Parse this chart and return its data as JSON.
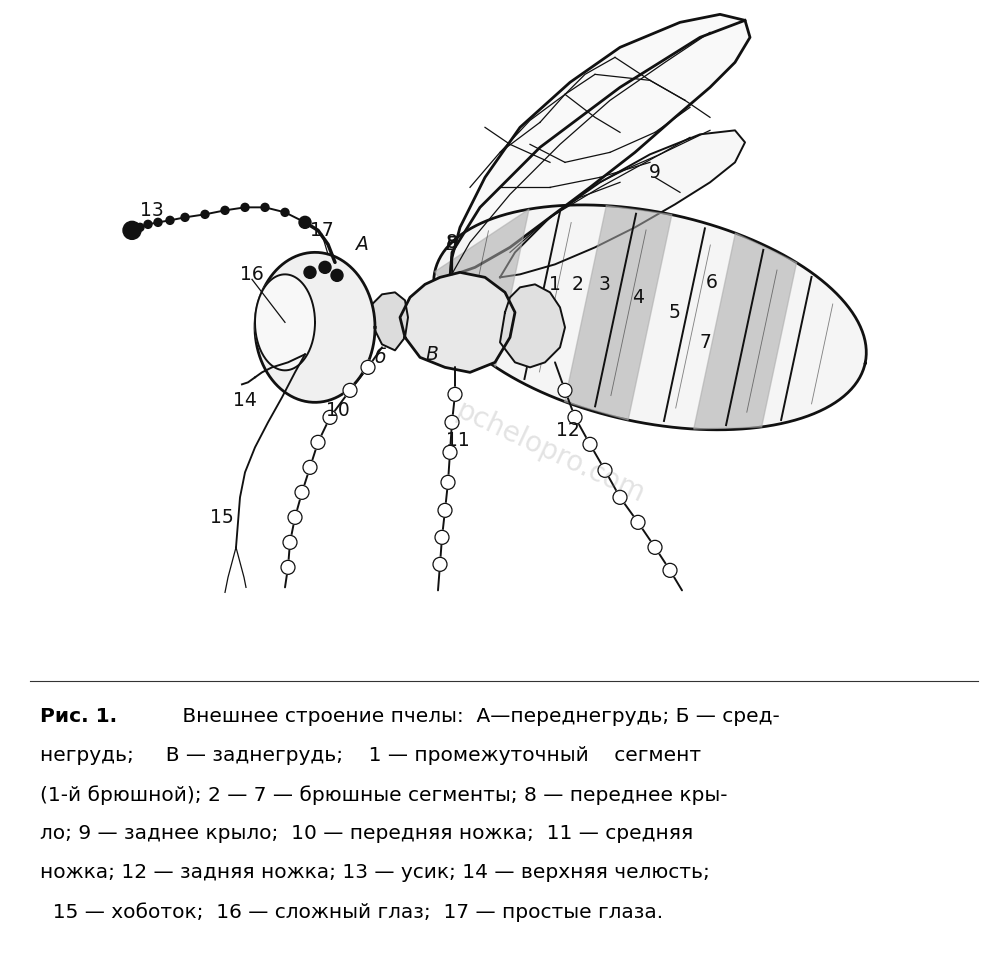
{
  "bg_color": "#ffffff",
  "text_color": "#000000",
  "figure_width": 10.08,
  "figure_height": 9.61,
  "dpi": 100,
  "watermark": "pchelopro.com",
  "caption_line1": "Рис. 1. Внешнее строение пчелы:  А—переднегрудь; Б — сред-",
  "caption_line2": "негрудь;     В — заднегрудь;    1 — промежуточный    сегмент",
  "caption_line3": "(1-й брюшной); 2 — 7 — брюшные сегменты; 8 — переднее кры-",
  "caption_line4": "ло; 9 — заднее крыло;  10 — передняя ножка;  11 — средняя",
  "caption_line5": "ножка; 12 — задняя ножка; 13 — усик; 14 — верхняя челюсть;",
  "caption_line6": "  15 — хоботок;  16 — сложный глаз;  17 — простые глаза."
}
